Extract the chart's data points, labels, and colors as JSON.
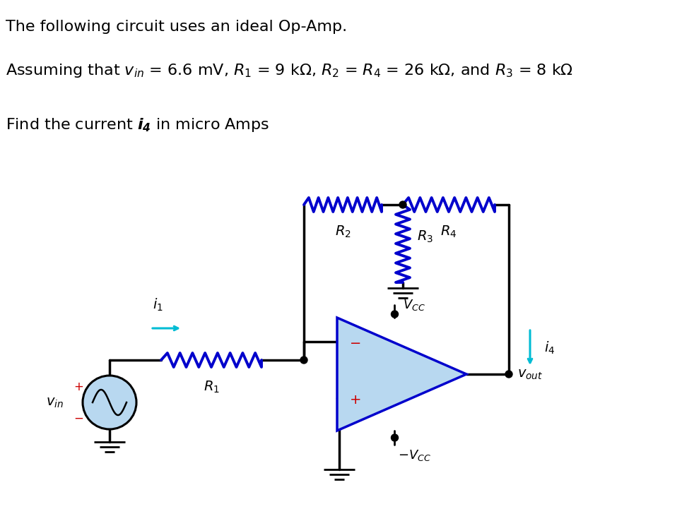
{
  "bg_color": "#ffffff",
  "text_color": "#1a1a1a",
  "blue_color": "#0000cc",
  "cyan_color": "#00bcd4",
  "red_color": "#cc0000",
  "light_blue_fill": "#b8d8f0",
  "wire_color": "#000000",
  "op_amp_border": "#0000cc"
}
